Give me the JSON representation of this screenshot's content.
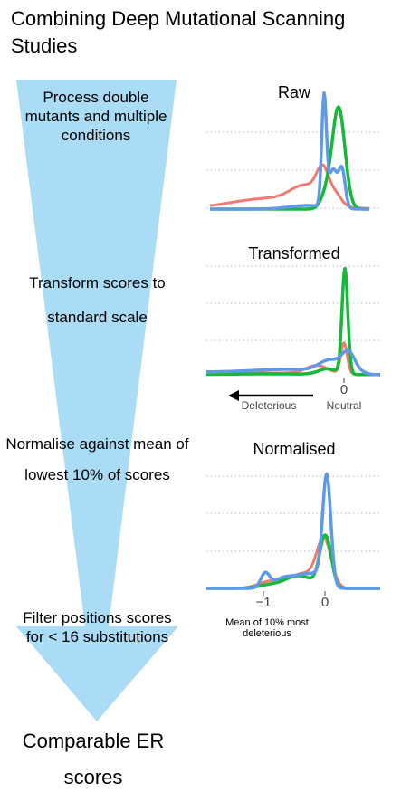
{
  "title": "Combining Deep Mutational Scanning Studies",
  "colors": {
    "arrow": "#aadcf6",
    "red": "#f07a72",
    "green": "#16b838",
    "blue": "#5f9ae8",
    "grid": "#c8c8c8"
  },
  "steps": [
    "Process double mutants and multiple conditions",
    "Transform scores to standard scale",
    "Normalise against mean of lowest 10% of scores",
    "Filter positions scores for < 16 substitutions"
  ],
  "final": "Comparable ER scores",
  "panels": {
    "raw": {
      "title": "Raw"
    },
    "transformed": {
      "title": "Transformed",
      "tick": "0",
      "tick_caption": "Neutral",
      "arrow_label": "Deleterious"
    },
    "normalised": {
      "title": "Normalised",
      "ticks": [
        "−1",
        "0"
      ],
      "caption": "Mean of 10% most deleterious"
    }
  }
}
